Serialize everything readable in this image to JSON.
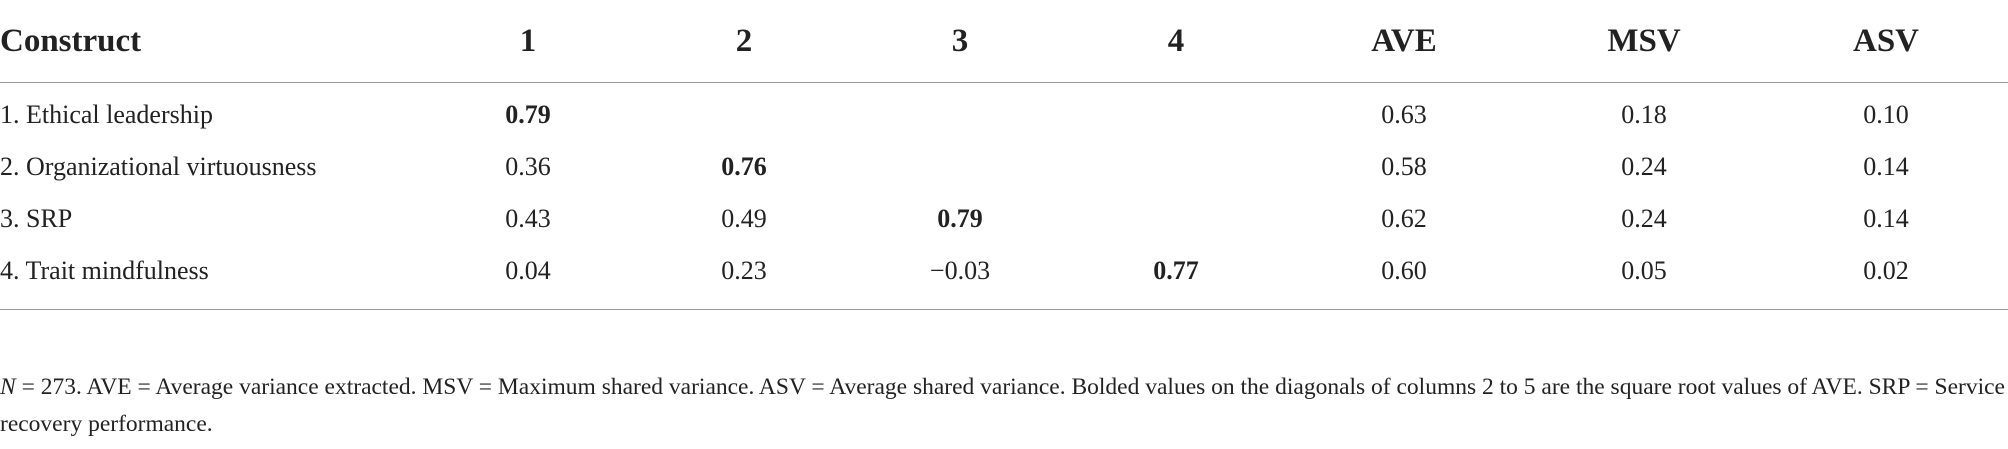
{
  "table": {
    "headers": [
      "Construct",
      "1",
      "2",
      "3",
      "4",
      "AVE",
      "MSV",
      "ASV"
    ],
    "rows": [
      {
        "construct": "1. Ethical leadership",
        "c1": "0.79",
        "c2": "",
        "c3": "",
        "c4": "",
        "ave": "0.63",
        "msv": "0.18",
        "asv": "0.10"
      },
      {
        "construct": "2. Organizational virtuousness",
        "c1": "0.36",
        "c2": "0.76",
        "c3": "",
        "c4": "",
        "ave": "0.58",
        "msv": "0.24",
        "asv": "0.14"
      },
      {
        "construct": "3. SRP",
        "c1": "0.43",
        "c2": "0.49",
        "c3": "0.79",
        "c4": "",
        "ave": "0.62",
        "msv": "0.24",
        "asv": "0.14"
      },
      {
        "construct": "4. Trait mindfulness",
        "c1": "0.04",
        "c2": "0.23",
        "c3": "−0.03",
        "c4": "0.77",
        "ave": "0.60",
        "msv": "0.05",
        "asv": "0.02"
      }
    ]
  },
  "footnote": {
    "n_label": "N",
    "text": " = 273. AVE = Average variance extracted. MSV = Maximum shared variance. ASV = Average shared variance. Bolded values on the diagonals of columns 2 to 5 are the square root values of AVE. SRP = Service recovery performance."
  }
}
